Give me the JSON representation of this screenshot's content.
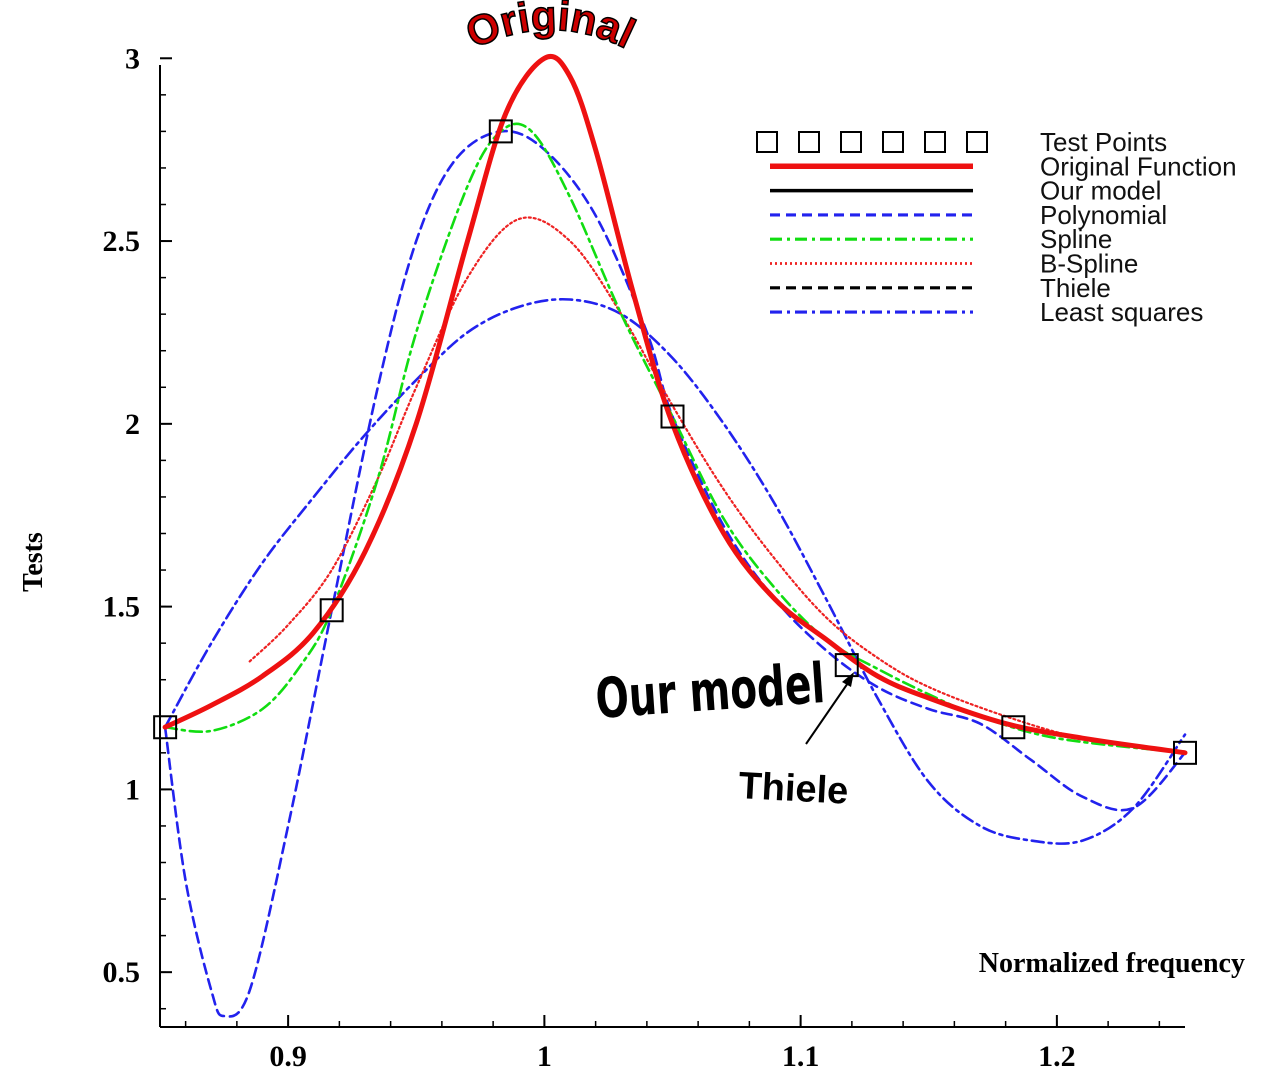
{
  "chart_data": {
    "type": "line",
    "xlabel": "Normalized frequency",
    "ylabel": "Tests",
    "xlim": [
      0.85,
      1.25
    ],
    "ylim": [
      0.35,
      3.05
    ],
    "x_ticks": [
      0.9,
      1,
      1.1,
      1.2
    ],
    "x_tick_labels": [
      "0.9",
      "1",
      "1.1",
      "1.2"
    ],
    "y_ticks": [
      0.5,
      1,
      1.5,
      2,
      2.5,
      3
    ],
    "y_tick_labels": [
      "0.5",
      "1",
      "1.5",
      "2",
      "2.5",
      "3"
    ],
    "grid": false,
    "legend_position": "top-right",
    "series": [
      {
        "name": "Test Points",
        "color": "#000000",
        "style": "square-marker",
        "x": [
          0.852,
          0.917,
          0.983,
          1.05,
          1.118,
          1.183,
          1.25
        ],
        "y": [
          1.17,
          1.49,
          2.8,
          2.02,
          1.34,
          1.17,
          1.1
        ]
      },
      {
        "name": "Original Function",
        "color": "#ee1111",
        "style": "solid-thick",
        "x": [
          0.852,
          0.87,
          0.89,
          0.91,
          0.93,
          0.95,
          0.97,
          0.985,
          1.0,
          1.01,
          1.02,
          1.035,
          1.05,
          1.07,
          1.09,
          1.11,
          1.13,
          1.15,
          1.18,
          1.21,
          1.25
        ],
        "y": [
          1.17,
          1.23,
          1.31,
          1.43,
          1.65,
          2.0,
          2.5,
          2.85,
          3.0,
          2.95,
          2.75,
          2.35,
          2.0,
          1.7,
          1.52,
          1.41,
          1.31,
          1.25,
          1.18,
          1.14,
          1.1
        ]
      },
      {
        "name": "Our model",
        "color": "#000000",
        "style": "solid",
        "x": [
          0.852,
          0.87,
          0.89,
          0.91,
          0.93,
          0.95,
          0.97,
          0.985,
          1.0,
          1.01,
          1.02,
          1.035,
          1.05,
          1.07,
          1.09,
          1.11,
          1.13,
          1.15,
          1.18,
          1.21,
          1.25
        ],
        "y": [
          1.17,
          1.23,
          1.31,
          1.43,
          1.65,
          2.0,
          2.5,
          2.85,
          3.0,
          2.95,
          2.75,
          2.35,
          2.0,
          1.7,
          1.52,
          1.41,
          1.31,
          1.25,
          1.18,
          1.14,
          1.1
        ]
      },
      {
        "name": "Polynomial",
        "color": "#2222ee",
        "style": "dash",
        "x": [
          0.852,
          0.86,
          0.87,
          0.875,
          0.885,
          0.9,
          0.917,
          0.935,
          0.95,
          0.965,
          0.983,
          1.0,
          1.02,
          1.04,
          1.05,
          1.07,
          1.09,
          1.11,
          1.13,
          1.15,
          1.17,
          1.19,
          1.21,
          1.23,
          1.25
        ],
        "y": [
          1.17,
          0.75,
          0.45,
          0.38,
          0.45,
          0.9,
          1.49,
          2.1,
          2.5,
          2.72,
          2.8,
          2.75,
          2.57,
          2.25,
          2.02,
          1.72,
          1.52,
          1.38,
          1.28,
          1.22,
          1.18,
          1.08,
          0.98,
          0.95,
          1.1
        ]
      },
      {
        "name": "Spline",
        "color": "#11dd11",
        "style": "dash-dot",
        "x": [
          0.852,
          0.87,
          0.89,
          0.905,
          0.917,
          0.935,
          0.95,
          0.97,
          0.983,
          0.995,
          1.01,
          1.03,
          1.05,
          1.07,
          1.09,
          1.11,
          1.13,
          1.15,
          1.17,
          1.2,
          1.25
        ],
        "y": [
          1.17,
          1.16,
          1.22,
          1.34,
          1.49,
          1.85,
          2.25,
          2.65,
          2.8,
          2.8,
          2.62,
          2.3,
          2.02,
          1.74,
          1.55,
          1.41,
          1.33,
          1.26,
          1.2,
          1.14,
          1.1
        ]
      },
      {
        "name": "B-Spline",
        "color": "#ee2222",
        "style": "dot",
        "x": [
          0.885,
          0.9,
          0.917,
          0.935,
          0.95,
          0.97,
          0.99,
          1.01,
          1.03,
          1.05,
          1.07,
          1.09,
          1.11,
          1.13,
          1.15,
          1.18,
          1.21,
          1.25
        ],
        "y": [
          1.35,
          1.45,
          1.6,
          1.85,
          2.1,
          2.4,
          2.56,
          2.5,
          2.3,
          2.05,
          1.82,
          1.63,
          1.47,
          1.36,
          1.28,
          1.2,
          1.14,
          1.1
        ]
      },
      {
        "name": "Thiele",
        "color": "#000000",
        "style": "dash",
        "x": [
          0.852,
          0.87,
          0.89,
          0.91,
          0.93,
          0.95,
          0.97,
          0.985,
          1.0,
          1.01,
          1.02,
          1.035,
          1.05,
          1.07,
          1.09,
          1.11,
          1.13,
          1.15,
          1.18,
          1.21,
          1.25
        ],
        "y": [
          1.17,
          1.23,
          1.31,
          1.43,
          1.65,
          2.0,
          2.5,
          2.85,
          3.0,
          2.95,
          2.75,
          2.35,
          2.0,
          1.7,
          1.52,
          1.41,
          1.31,
          1.25,
          1.18,
          1.14,
          1.1
        ]
      },
      {
        "name": "Least squares",
        "color": "#2222ee",
        "style": "dash-dot",
        "x": [
          0.852,
          0.87,
          0.89,
          0.91,
          0.93,
          0.95,
          0.97,
          0.99,
          1.01,
          1.03,
          1.05,
          1.07,
          1.09,
          1.11,
          1.13,
          1.15,
          1.17,
          1.19,
          1.21,
          1.23,
          1.25
        ],
        "y": [
          1.17,
          1.4,
          1.62,
          1.8,
          1.97,
          2.12,
          2.25,
          2.32,
          2.34,
          2.3,
          2.18,
          2.0,
          1.78,
          1.52,
          1.25,
          1.02,
          0.9,
          0.86,
          0.86,
          0.95,
          1.15
        ]
      }
    ],
    "annotations": [
      "Original",
      "Our model",
      "Thiele"
    ]
  }
}
